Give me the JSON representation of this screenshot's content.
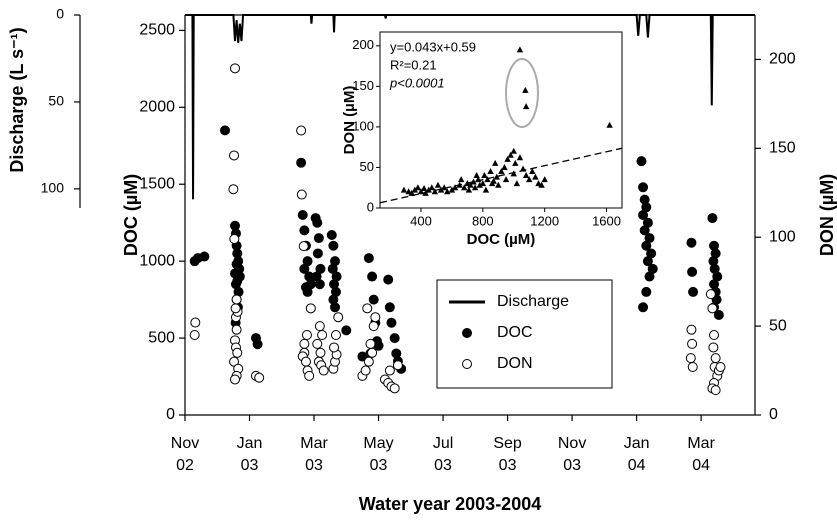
{
  "chart_data": [
    {
      "type": "scatter",
      "x_label": "Water year 2003-2004",
      "y_label": "DOC (µM)",
      "y2_label": "DON (µM)",
      "y3_label": "Discharge (L s⁻¹)",
      "xlim": [
        0,
        17.67
      ],
      "xticks": [
        {
          "value": 0,
          "label": "Nov\n02"
        },
        {
          "value": 2,
          "label": "Jan\n03"
        },
        {
          "value": 4,
          "label": "Mar\n03"
        },
        {
          "value": 6,
          "label": "May\n03"
        },
        {
          "value": 8,
          "label": "Jul\n03"
        },
        {
          "value": 10,
          "label": "Sep\n03"
        },
        {
          "value": 12,
          "label": "Nov\n03"
        },
        {
          "value": 14,
          "label": "Jan\n04"
        },
        {
          "value": 16,
          "label": "Mar\n04"
        }
      ],
      "ylim": [
        0,
        2600
      ],
      "yticks": [
        0,
        500,
        1000,
        1500,
        2000,
        2500
      ],
      "y2lim": [
        0,
        225
      ],
      "y2ticks": [
        0,
        50,
        100,
        150,
        200
      ],
      "y3lim": [
        0,
        111
      ],
      "y3ticks": [
        0,
        50,
        100
      ],
      "y3_inverted": true,
      "legend": "center",
      "series": [
        {
          "name": "Discharge",
          "type": "line",
          "color": "#000000",
          "axis": "y3",
          "x": [
            0,
            0.23,
            0.25,
            0.27,
            1.5,
            1.55,
            1.6,
            1.65,
            1.7,
            1.75,
            1.8,
            3.9,
            3.92,
            3.94,
            4.6,
            4.62,
            4.64,
            6.2,
            6.22,
            6.24,
            14.0,
            14.05,
            14.1,
            14.3,
            14.35,
            14.4,
            16.3,
            16.33,
            16.36,
            17.67
          ],
          "values": [
            0,
            0,
            106,
            0,
            0,
            15,
            3,
            16,
            5,
            15,
            0,
            0,
            5,
            0,
            0,
            10,
            0,
            0,
            2,
            0,
            0,
            12,
            0,
            0,
            13,
            0,
            0,
            52,
            0,
            0
          ]
        },
        {
          "name": "DOC",
          "type": "scatter",
          "marker": "filled",
          "color": "#000000",
          "x": [
            0.3,
            0.4,
            0.6,
            1.24,
            1.55,
            1.58,
            1.6,
            1.62,
            1.65,
            1.6,
            1.68,
            1.55,
            1.7,
            1.62,
            1.58,
            1.66,
            1.6,
            1.64,
            1.57,
            2.2,
            2.25,
            3.6,
            3.65,
            3.7,
            3.75,
            3.8,
            3.7,
            3.85,
            3.9,
            3.75,
            3.8,
            4.05,
            4.1,
            4.15,
            4.12,
            4.2,
            4.08,
            4.18,
            4.55,
            4.6,
            4.65,
            4.58,
            4.7,
            4.62,
            4.68,
            4.6,
            4.65,
            5.0,
            5.5,
            5.7,
            5.8,
            5.85,
            5.9,
            5.95,
            6.0,
            5.75,
            6.3,
            6.35,
            6.4,
            6.5,
            6.55,
            6.6,
            6.7,
            14.15,
            14.2,
            14.25,
            14.3,
            14.2,
            14.35,
            14.25,
            14.4,
            14.3,
            14.45,
            14.35,
            14.5,
            14.4,
            14.3,
            14.2,
            15.7,
            15.72,
            15.75,
            16.35,
            16.4,
            16.45,
            16.38,
            16.42,
            16.5,
            16.4,
            16.45,
            16.48,
            16.4,
            16.55
          ],
          "values": [
            1000,
            1020,
            1030,
            1850,
            1230,
            1180,
            1100,
            1050,
            1000,
            980,
            950,
            920,
            900,
            870,
            850,
            800,
            750,
            700,
            600,
            500,
            460,
            1640,
            1300,
            1200,
            1100,
            1000,
            950,
            900,
            850,
            830,
            800,
            1280,
            1250,
            1150,
            1050,
            950,
            900,
            850,
            1170,
            1100,
            1000,
            950,
            900,
            850,
            800,
            750,
            700,
            550,
            380,
            1020,
            900,
            750,
            600,
            480,
            450,
            400,
            880,
            700,
            600,
            500,
            400,
            350,
            300,
            1650,
            1480,
            1400,
            1350,
            1300,
            1250,
            1200,
            1150,
            1100,
            1050,
            1000,
            950,
            900,
            800,
            700,
            1120,
            930,
            800,
            1280,
            1100,
            1050,
            1000,
            950,
            900,
            850,
            800,
            750,
            700,
            650
          ]
        },
        {
          "name": "DON",
          "type": "scatter",
          "marker": "open",
          "color": "#000000",
          "axis": "y2",
          "x": [
            0.3,
            0.32,
            1.55,
            1.52,
            1.5,
            1.53,
            1.6,
            1.55,
            1.58,
            1.62,
            1.52,
            1.65,
            1.6,
            1.55,
            1.58,
            1.63,
            1.57,
            1.6,
            2.2,
            2.3,
            3.6,
            3.62,
            3.7,
            3.65,
            3.75,
            3.8,
            3.85,
            3.7,
            3.78,
            3.9,
            3.68,
            4.15,
            4.2,
            4.1,
            4.25,
            4.18,
            4.22,
            4.3,
            4.6,
            4.65,
            4.7,
            4.62,
            4.68,
            4.75,
            5.5,
            5.6,
            5.7,
            5.8,
            5.75,
            5.85,
            5.9,
            5.65,
            6.2,
            6.3,
            6.4,
            6.5,
            6.6,
            6.35,
            15.7,
            15.72,
            15.68,
            15.74,
            16.3,
            16.35,
            16.4,
            16.38,
            16.45,
            16.42,
            16.5,
            16.4,
            16.35,
            16.45,
            16.55,
            16.6
          ],
          "values": [
            45,
            52,
            195,
            146,
            127,
            99,
            48,
            42,
            38,
            35,
            30,
            26,
            22,
            20,
            55,
            58,
            60,
            65,
            22,
            21,
            160,
            124,
            35,
            33,
            30,
            25,
            22,
            40,
            45,
            60,
            95,
            30,
            35,
            40,
            45,
            50,
            28,
            25,
            26,
            30,
            34,
            38,
            45,
            55,
            22,
            25,
            30,
            35,
            40,
            50,
            55,
            60,
            20,
            18,
            16,
            15,
            28,
            25,
            48,
            40,
            32,
            27,
            68,
            60,
            45,
            38,
            32,
            27,
            22,
            18,
            15,
            14,
            25,
            27
          ]
        }
      ]
    },
    {
      "type": "scatter",
      "x_label": "DOC (µM)",
      "y_label": "DON (µM)",
      "xlim": [
        135,
        1700
      ],
      "xticks": [
        400,
        800,
        1200,
        1600
      ],
      "ylim": [
        0,
        217
      ],
      "yticks": [
        0,
        50,
        100,
        150,
        200
      ],
      "annotations": [
        "y=0.043x+0.59",
        "R²=0.21",
        "p<0.0001"
      ],
      "fit": {
        "slope": 0.043,
        "intercept": 0.59
      },
      "color": "#000000",
      "x": [
        290,
        320,
        340,
        360,
        380,
        400,
        420,
        430,
        450,
        470,
        490,
        510,
        530,
        550,
        570,
        600,
        620,
        650,
        660,
        680,
        700,
        710,
        720,
        740,
        750,
        770,
        780,
        800,
        810,
        820,
        830,
        850,
        860,
        880,
        890,
        900,
        920,
        940,
        950,
        960,
        980,
        1000,
        1010,
        1020,
        1040,
        1060,
        1080,
        1100,
        1120,
        1140,
        1160,
        1180,
        1200,
        1040,
        1075,
        1080,
        1620,
        1000,
        870,
        760
      ],
      "values": [
        22,
        20,
        18,
        22,
        25,
        20,
        24,
        18,
        22,
        25,
        20,
        28,
        22,
        25,
        20,
        22,
        25,
        28,
        35,
        25,
        30,
        22,
        28,
        32,
        25,
        35,
        28,
        30,
        40,
        22,
        35,
        45,
        30,
        55,
        38,
        28,
        45,
        50,
        35,
        60,
        65,
        42,
        55,
        30,
        62,
        48,
        40,
        35,
        45,
        38,
        30,
        28,
        35,
        195,
        145,
        125,
        102,
        70,
        33,
        40
      ]
    }
  ]
}
